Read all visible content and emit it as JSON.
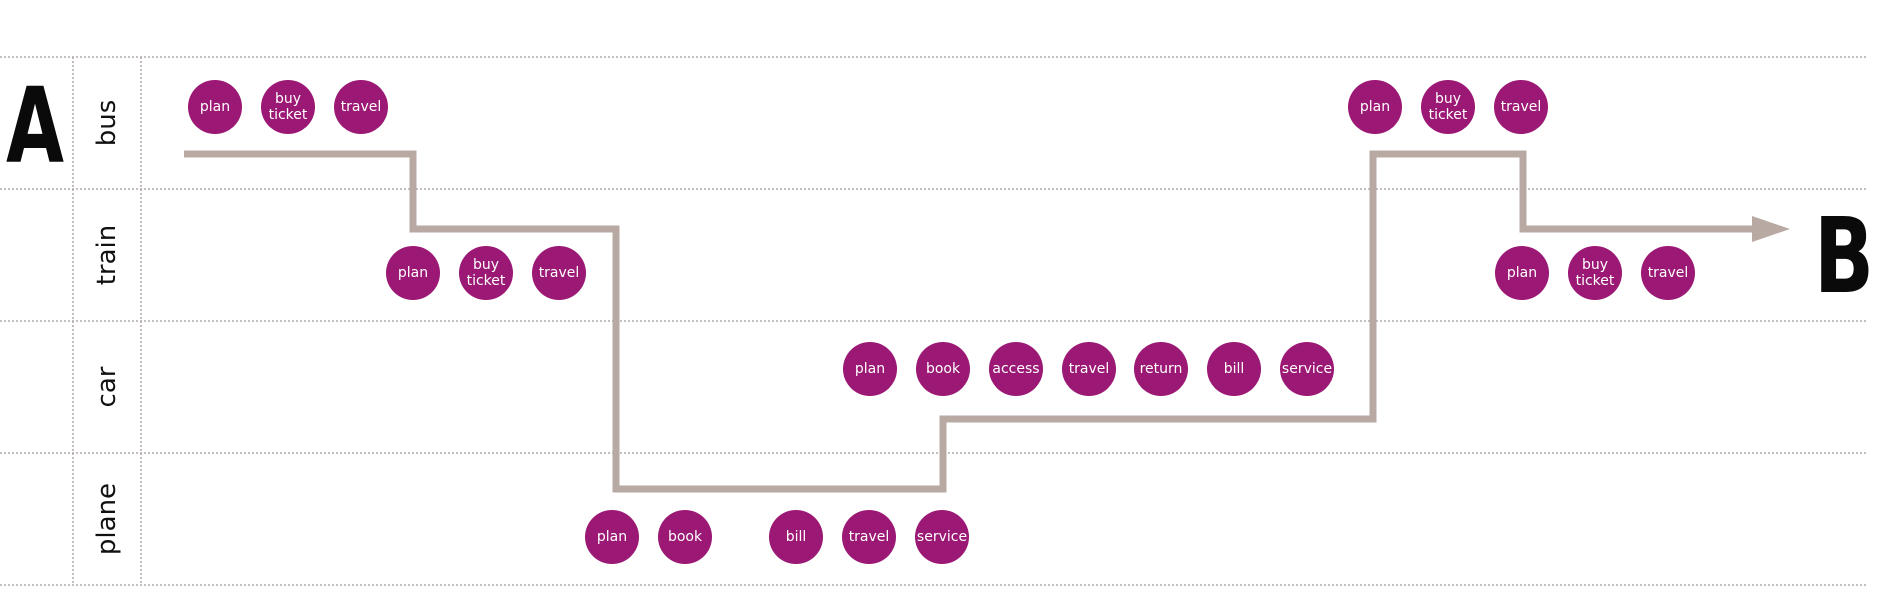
{
  "endpoints": {
    "start": "A",
    "end": "B"
  },
  "colors": {
    "node": "#9b1874",
    "route": "#b8a9a2",
    "divider": "#b0a8a8"
  },
  "lanes": [
    {
      "id": "bus",
      "label": "bus"
    },
    {
      "id": "train",
      "label": "train"
    },
    {
      "id": "car",
      "label": "car"
    },
    {
      "id": "plane",
      "label": "plane"
    }
  ],
  "step_groups": [
    {
      "lane": "bus",
      "steps": [
        "plan",
        "buy ticket",
        "travel"
      ]
    },
    {
      "lane": "train",
      "steps": [
        "plan",
        "buy ticket",
        "travel"
      ]
    },
    {
      "lane": "plane",
      "steps": [
        "plan",
        "book",
        "bill",
        "travel",
        "service"
      ]
    },
    {
      "lane": "car",
      "steps": [
        "plan",
        "book",
        "access",
        "travel",
        "return",
        "bill",
        "service"
      ]
    },
    {
      "lane": "bus",
      "steps": [
        "plan",
        "buy ticket",
        "travel"
      ]
    },
    {
      "lane": "train",
      "steps": [
        "plan",
        "buy ticket",
        "travel"
      ]
    }
  ],
  "route": [
    "A",
    "bus",
    "train",
    "plane",
    "car",
    "bus",
    "train",
    "B"
  ]
}
